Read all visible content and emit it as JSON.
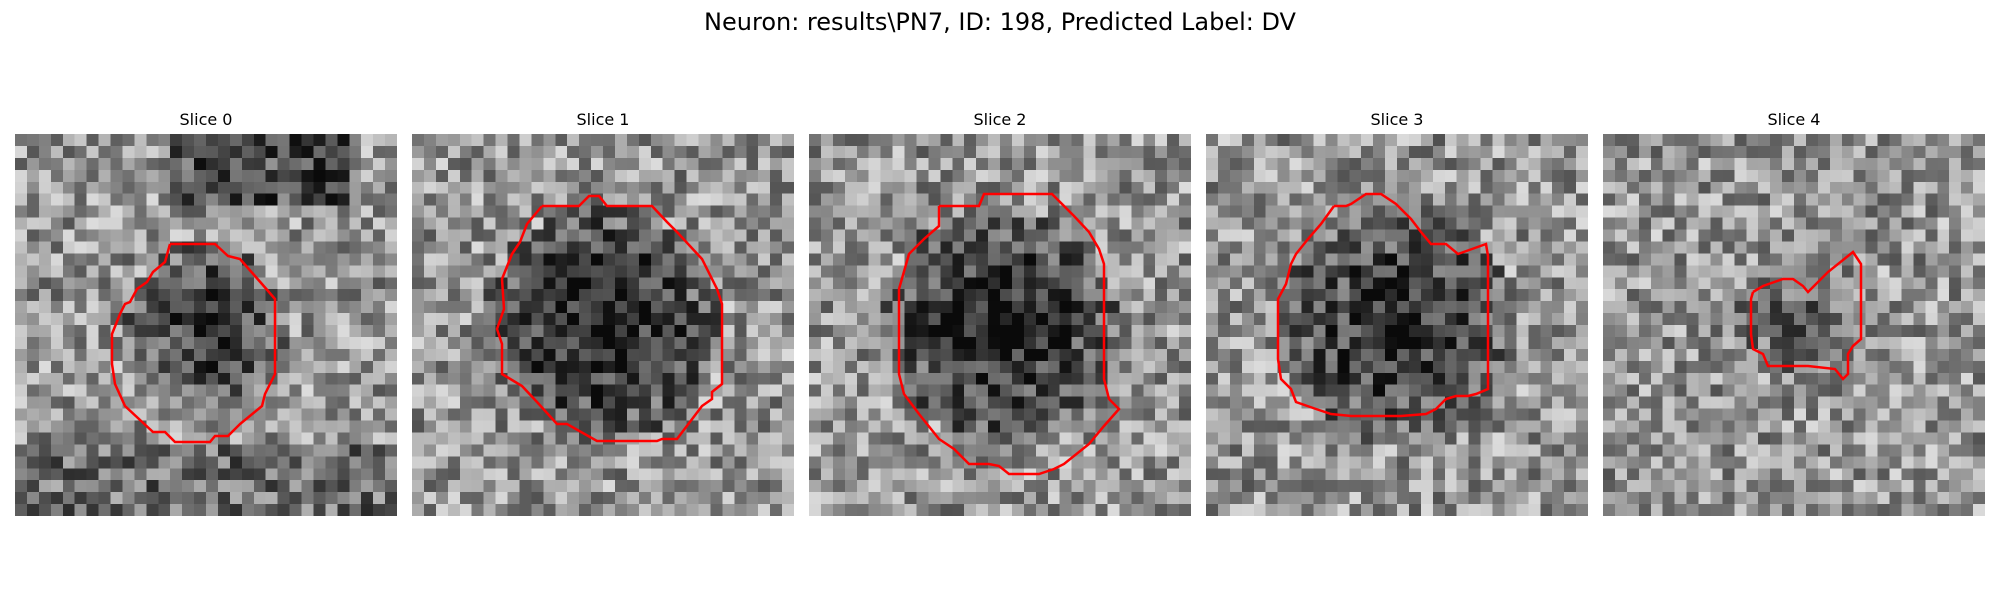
{
  "figure": {
    "title": "Neuron: results\\PN7, ID: 198, Predicted Label: DV"
  },
  "panels": [
    {
      "title": "Slice 0",
      "seed": 11,
      "dark_blob": 0.45,
      "contour_color": "#ff0000"
    },
    {
      "title": "Slice 1",
      "seed": 23,
      "dark_blob": 0.55,
      "contour_color": "#ff0000"
    },
    {
      "title": "Slice 2",
      "seed": 37,
      "dark_blob": 0.55,
      "contour_color": "#ff0000"
    },
    {
      "title": "Slice 3",
      "seed": 41,
      "dark_blob": 0.5,
      "contour_color": "#ff0000"
    },
    {
      "title": "Slice 4",
      "seed": 53,
      "dark_blob": 0.25,
      "contour_color": "#ff0000"
    }
  ],
  "colors": {
    "contour": "#ff0000",
    "background": "#ffffff"
  },
  "colormap": "gray"
}
